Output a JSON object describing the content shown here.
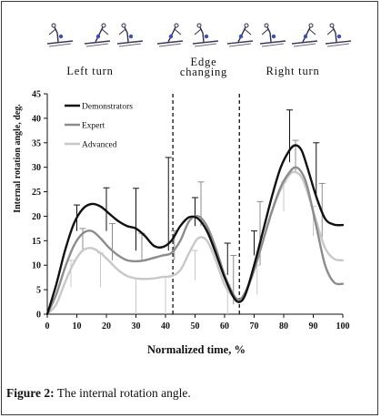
{
  "chart_data": {
    "type": "line",
    "title": "",
    "xlabel": "Normalized time, %",
    "ylabel": "Internal rotation angle, deg.",
    "xlim": [
      0,
      100
    ],
    "ylim": [
      0,
      45
    ],
    "x_ticks": [
      "0",
      "10",
      "20",
      "30",
      "40",
      "50",
      "60",
      "70",
      "80",
      "90",
      "100"
    ],
    "y_ticks": [
      "0",
      "5",
      "10",
      "15",
      "20",
      "25",
      "30",
      "35",
      "40",
      "45"
    ],
    "grid": false,
    "legend_position": "top-left",
    "phase_labels": {
      "left": "Left turn",
      "middle_line1": "Edge",
      "middle_line2": "changing",
      "right": "Right turn"
    },
    "phase_boundaries": [
      42.5,
      65
    ],
    "colors": {
      "demonstrators": "#111111",
      "expert": "#8c8c8c",
      "advanced": "#c8c8c8"
    },
    "series": [
      {
        "name": "Demonstrators",
        "x": [
          0,
          3,
          6,
          9,
          12,
          15,
          18,
          21,
          24,
          27,
          30,
          33,
          36,
          39,
          42,
          45,
          48,
          51,
          54,
          57,
          60,
          63,
          65,
          67,
          70,
          73,
          76,
          79,
          82,
          84,
          86,
          88,
          91,
          94,
          97,
          100
        ],
        "values": [
          0,
          6,
          13,
          18.5,
          21.5,
          22.5,
          22,
          20.5,
          19,
          18,
          17.5,
          16,
          14,
          13.7,
          15,
          18,
          19.8,
          19.5,
          17,
          12.5,
          7.5,
          3.5,
          2.5,
          4,
          10,
          17,
          24,
          30,
          33.5,
          34.5,
          33.5,
          30,
          24,
          19.5,
          18.3,
          18.2
        ]
      },
      {
        "name": "Expert",
        "x": [
          0,
          3,
          6,
          9,
          12,
          15,
          18,
          21,
          24,
          27,
          30,
          33,
          36,
          39,
          42,
          45,
          48,
          51,
          54,
          57,
          60,
          63,
          65,
          67,
          70,
          73,
          76,
          79,
          82,
          84,
          86,
          88,
          91,
          94,
          97,
          100
        ],
        "values": [
          0,
          4,
          9.5,
          14,
          16.5,
          17,
          15.5,
          13.5,
          12,
          11,
          10.8,
          11,
          11.5,
          12,
          12.5,
          15,
          19,
          20,
          18,
          13.5,
          8,
          4,
          3,
          4.5,
          9,
          15,
          21,
          26,
          29,
          30,
          29,
          26,
          18,
          10,
          6.5,
          6.2
        ]
      },
      {
        "name": "Advanced",
        "x": [
          0,
          3,
          6,
          9,
          12,
          15,
          18,
          21,
          24,
          27,
          30,
          33,
          36,
          39,
          42,
          45,
          48,
          51,
          54,
          57,
          60,
          63,
          65,
          67,
          70,
          73,
          76,
          79,
          82,
          84,
          86,
          88,
          91,
          94,
          97,
          100
        ],
        "values": [
          0,
          2,
          6.5,
          10.5,
          13,
          13.5,
          12.5,
          10.8,
          9,
          7.8,
          7.3,
          7.2,
          7.3,
          7.6,
          7.8,
          9,
          12.5,
          15.5,
          15,
          11,
          6,
          3.5,
          3,
          4,
          9,
          15,
          21,
          25.5,
          28.5,
          29,
          28,
          25,
          19,
          13.5,
          11.3,
          11
        ]
      }
    ],
    "error_bars": [
      {
        "x": 10,
        "from": 17,
        "to": 22.3,
        "series": "Demonstrators"
      },
      {
        "x": 20,
        "from": 17,
        "to": 25.8,
        "series": "Demonstrators"
      },
      {
        "x": 30,
        "from": 13,
        "to": 25.7,
        "series": "Demonstrators"
      },
      {
        "x": 41,
        "from": 13,
        "to": 32,
        "series": "Demonstrators"
      },
      {
        "x": 50,
        "from": 18,
        "to": 23.8,
        "series": "Demonstrators"
      },
      {
        "x": 61,
        "from": 8,
        "to": 14.5,
        "series": "Demonstrators"
      },
      {
        "x": 70,
        "from": 12,
        "to": 17,
        "series": "Demonstrators"
      },
      {
        "x": 82,
        "from": 31,
        "to": 41.7,
        "series": "Demonstrators"
      },
      {
        "x": 91,
        "from": 24,
        "to": 35,
        "series": "Demonstrators"
      },
      {
        "x": 12,
        "from": 13,
        "to": 17.5,
        "series": "Expert"
      },
      {
        "x": 22,
        "from": 11,
        "to": 18.5,
        "series": "Expert"
      },
      {
        "x": 32,
        "from": 11,
        "to": 16.5,
        "series": "Expert"
      },
      {
        "x": 43,
        "from": 11,
        "to": 17,
        "series": "Expert"
      },
      {
        "x": 52,
        "from": 18,
        "to": 27,
        "series": "Expert"
      },
      {
        "x": 63,
        "from": 2,
        "to": 12,
        "series": "Expert"
      },
      {
        "x": 72,
        "from": 10,
        "to": 23,
        "series": "Expert"
      },
      {
        "x": 84,
        "from": 29,
        "to": 35.5,
        "series": "Expert"
      },
      {
        "x": 93,
        "from": 15,
        "to": 26.7,
        "series": "Expert"
      },
      {
        "x": 8,
        "from": 5.5,
        "to": 11,
        "series": "Advanced"
      },
      {
        "x": 18,
        "from": 5.5,
        "to": 12.5,
        "series": "Advanced"
      },
      {
        "x": 30,
        "from": 0,
        "to": 7.3,
        "series": "Advanced"
      },
      {
        "x": 40,
        "from": 0,
        "to": 7.7,
        "series": "Advanced"
      },
      {
        "x": 50,
        "from": 7,
        "to": 13,
        "series": "Advanced"
      },
      {
        "x": 61,
        "from": 0,
        "to": 6,
        "series": "Advanced"
      },
      {
        "x": 71,
        "from": 4,
        "to": 10,
        "series": "Advanced"
      },
      {
        "x": 80,
        "from": 21,
        "to": 27,
        "series": "Advanced"
      },
      {
        "x": 90,
        "from": 16,
        "to": 22,
        "series": "Advanced"
      }
    ]
  },
  "caption": {
    "label": "Figure 2:",
    "text": " The internal rotation angle."
  }
}
